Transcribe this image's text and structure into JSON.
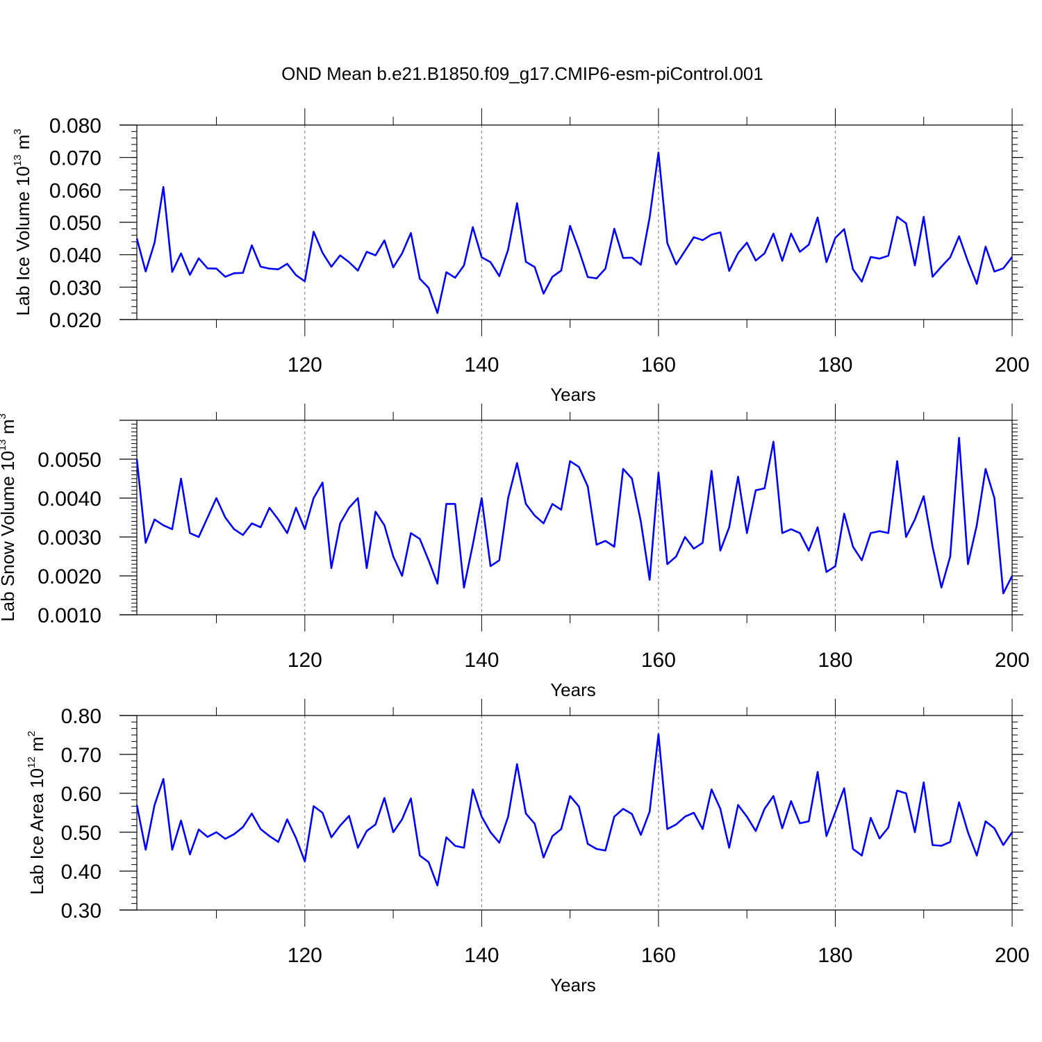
{
  "title": "OND Mean b.e21.B1850.f09_g17.CMIP6-esm-piControl.001",
  "chart_data": [
    {
      "type": "line",
      "ylabel": {
        "main": "Lab Ice Volume 10",
        "exp": "13",
        "unit": " m",
        "unit_exp": "3"
      },
      "xlabel": "Years",
      "xlim": [
        101,
        200
      ],
      "ylim": [
        0.02,
        0.08
      ],
      "yticks": [
        0.02,
        0.03,
        0.04,
        0.05,
        0.06,
        0.07,
        0.08
      ],
      "ytick_labels": [
        "0.020",
        "0.030",
        "0.040",
        "0.050",
        "0.060",
        "0.070",
        "0.080"
      ],
      "xticks": [
        120,
        140,
        160,
        180,
        200
      ],
      "xtick_labels": [
        "120",
        "140",
        "160",
        "180",
        "200"
      ],
      "grid": "vertical dashed at major x ticks",
      "line_color": "#0000ff",
      "series": [
        {
          "x_start": 101,
          "values": [
            0.045,
            0.0348,
            0.0437,
            0.0609,
            0.0347,
            0.0404,
            0.0338,
            0.0389,
            0.0358,
            0.0357,
            0.0332,
            0.0343,
            0.0344,
            0.0429,
            0.0363,
            0.0357,
            0.0355,
            0.0372,
            0.0337,
            0.0318,
            0.0471,
            0.0406,
            0.0363,
            0.0398,
            0.0377,
            0.0351,
            0.0409,
            0.0398,
            0.0444,
            0.0361,
            0.0404,
            0.0467,
            0.0326,
            0.0298,
            0.022,
            0.0346,
            0.0329,
            0.0367,
            0.0485,
            0.0392,
            0.0377,
            0.0334,
            0.0416,
            0.0559,
            0.0378,
            0.0362,
            0.028,
            0.0332,
            0.0351,
            0.0489,
            0.0414,
            0.0331,
            0.0327,
            0.0357,
            0.048,
            0.039,
            0.0391,
            0.0369,
            0.0515,
            0.0715,
            0.0436,
            0.037,
            0.0412,
            0.0454,
            0.0445,
            0.0462,
            0.0469,
            0.035,
            0.0405,
            0.0437,
            0.0382,
            0.0404,
            0.0465,
            0.0381,
            0.0465,
            0.0409,
            0.0431,
            0.0515,
            0.0377,
            0.0452,
            0.0479,
            0.0355,
            0.0317,
            0.0393,
            0.0388,
            0.0397,
            0.0517,
            0.0497,
            0.0367,
            0.0517,
            0.0332,
            0.0363,
            0.0392,
            0.0457,
            0.0379,
            0.031,
            0.0425,
            0.0348,
            0.0358,
            0.0393
          ]
        }
      ]
    },
    {
      "type": "line",
      "ylabel": {
        "main": "Lab Snow Volume 10",
        "exp": "13",
        "unit": " m",
        "unit_exp": "3"
      },
      "xlabel": "Years",
      "xlim": [
        101,
        200
      ],
      "ylim": [
        0.001,
        0.006
      ],
      "yticks": [
        0.001,
        0.002,
        0.003,
        0.004,
        0.005
      ],
      "ytick_labels": [
        "0.0010",
        "0.0020",
        "0.0030",
        "0.0040",
        "0.0050"
      ],
      "xticks": [
        120,
        140,
        160,
        180,
        200
      ],
      "xtick_labels": [
        "120",
        "140",
        "160",
        "180",
        "200"
      ],
      "grid": "vertical dashed at major x ticks",
      "line_color": "#0000ff",
      "series": [
        {
          "x_start": 101,
          "values": [
            0.005,
            0.00285,
            0.00345,
            0.0033,
            0.0032,
            0.0045,
            0.0031,
            0.003,
            0.0035,
            0.004,
            0.0035,
            0.0032,
            0.00305,
            0.00335,
            0.00325,
            0.00375,
            0.00345,
            0.0031,
            0.00375,
            0.0032,
            0.004,
            0.0044,
            0.0022,
            0.00335,
            0.00375,
            0.004,
            0.0022,
            0.00365,
            0.0033,
            0.0025,
            0.002,
            0.0031,
            0.00295,
            0.0024,
            0.0018,
            0.00385,
            0.00385,
            0.0017,
            0.0028,
            0.004,
            0.00225,
            0.0024,
            0.004,
            0.0049,
            0.00385,
            0.00355,
            0.00335,
            0.00385,
            0.0037,
            0.00495,
            0.0048,
            0.0043,
            0.0028,
            0.0029,
            0.00275,
            0.00475,
            0.0045,
            0.0034,
            0.0019,
            0.00465,
            0.0023,
            0.0025,
            0.003,
            0.0027,
            0.00285,
            0.0047,
            0.00265,
            0.00325,
            0.00455,
            0.0031,
            0.0042,
            0.00425,
            0.00545,
            0.0031,
            0.0032,
            0.0031,
            0.00265,
            0.00325,
            0.0021,
            0.00225,
            0.0036,
            0.00275,
            0.0024,
            0.0031,
            0.00315,
            0.0031,
            0.00495,
            0.003,
            0.00345,
            0.00405,
            0.00275,
            0.0017,
            0.0025,
            0.00555,
            0.0023,
            0.0033,
            0.00475,
            0.004,
            0.00155,
            0.002
          ]
        }
      ]
    },
    {
      "type": "line",
      "ylabel": {
        "main": "Lab Ice Area 10",
        "exp": "12",
        "unit": " m",
        "unit_exp": "2"
      },
      "xlabel": "Years",
      "xlim": [
        101,
        200
      ],
      "ylim": [
        0.3,
        0.8
      ],
      "yticks": [
        0.3,
        0.4,
        0.5,
        0.6,
        0.7,
        0.8
      ],
      "ytick_labels": [
        "0.30",
        "0.40",
        "0.50",
        "0.60",
        "0.70",
        "0.80"
      ],
      "xticks": [
        120,
        140,
        160,
        180,
        200
      ],
      "xtick_labels": [
        "120",
        "140",
        "160",
        "180",
        "200"
      ],
      "grid": "vertical dashed at major x ticks",
      "line_color": "#0000ff",
      "series": [
        {
          "x_start": 101,
          "values": [
            0.57,
            0.455,
            0.57,
            0.637,
            0.455,
            0.53,
            0.443,
            0.507,
            0.488,
            0.5,
            0.483,
            0.495,
            0.513,
            0.548,
            0.508,
            0.49,
            0.475,
            0.533,
            0.485,
            0.425,
            0.567,
            0.55,
            0.487,
            0.517,
            0.542,
            0.46,
            0.503,
            0.52,
            0.588,
            0.5,
            0.533,
            0.587,
            0.44,
            0.423,
            0.363,
            0.487,
            0.465,
            0.46,
            0.61,
            0.54,
            0.5,
            0.473,
            0.54,
            0.675,
            0.548,
            0.522,
            0.435,
            0.49,
            0.508,
            0.593,
            0.566,
            0.47,
            0.457,
            0.453,
            0.54,
            0.56,
            0.547,
            0.493,
            0.553,
            0.752,
            0.508,
            0.52,
            0.54,
            0.55,
            0.508,
            0.61,
            0.56,
            0.46,
            0.57,
            0.54,
            0.503,
            0.56,
            0.593,
            0.51,
            0.58,
            0.523,
            0.528,
            0.655,
            0.49,
            0.552,
            0.613,
            0.457,
            0.44,
            0.537,
            0.484,
            0.512,
            0.607,
            0.6,
            0.5,
            0.628,
            0.467,
            0.465,
            0.475,
            0.577,
            0.5,
            0.44,
            0.528,
            0.51,
            0.467,
            0.5
          ]
        }
      ]
    }
  ]
}
